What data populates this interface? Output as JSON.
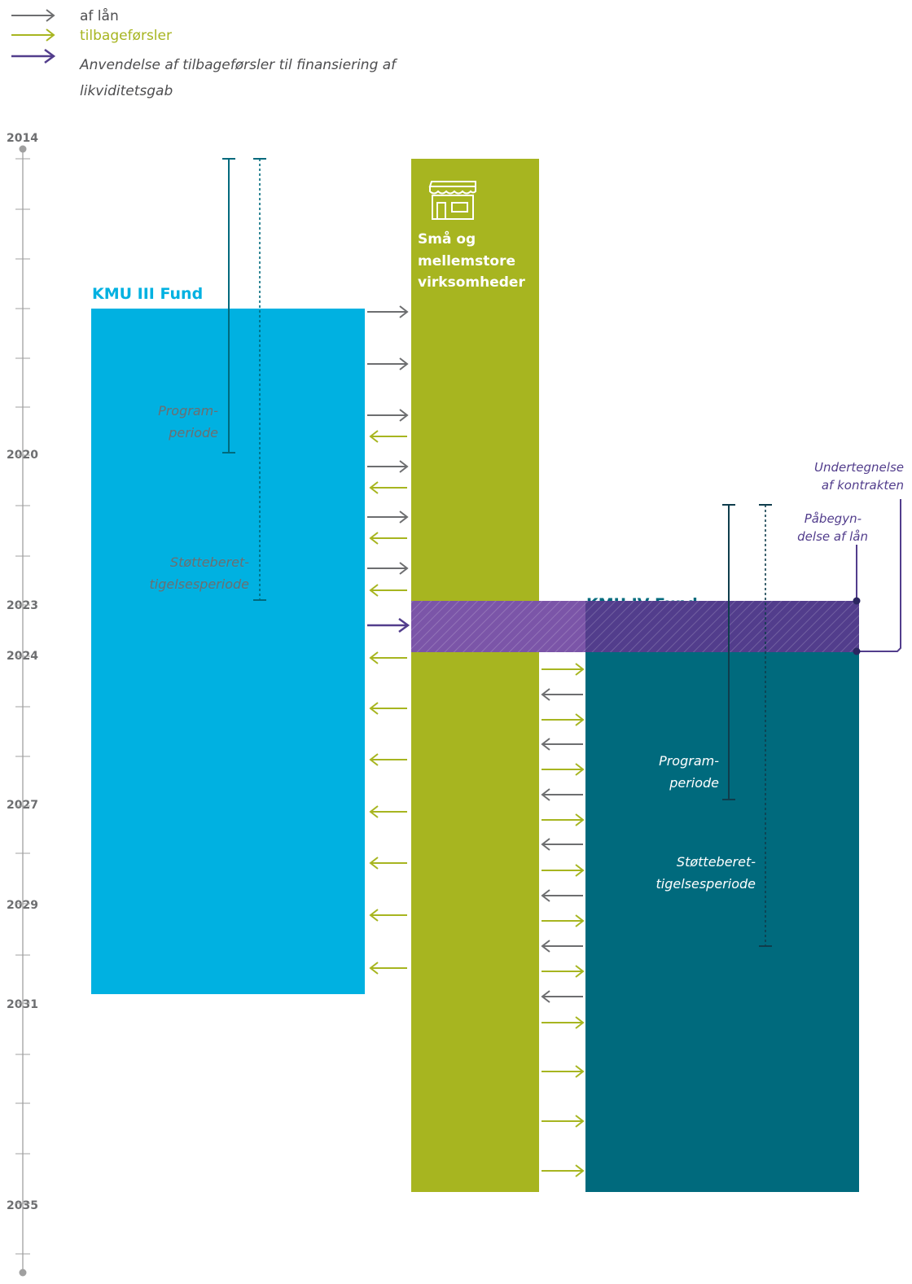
{
  "legend": {
    "loans_label": "af lån",
    "repayments_label": "tilbageførsler",
    "reuse_label_line1": "Anvendelse af tilbageførsler til finansiering af",
    "reuse_label_line2": "likviditetsgab"
  },
  "timeline": {
    "years": [
      "2014",
      "2020",
      "2023",
      "2024",
      "2027",
      "2029",
      "2031",
      "2035"
    ]
  },
  "funds": {
    "kmu3_title": "KMU III Fund",
    "kmu4_title": "KMU IV Fund"
  },
  "sme": {
    "icon": "shop-icon",
    "label_line1": "Små og",
    "label_line2": "mellemstore",
    "label_line3": "virksomheder"
  },
  "periods": {
    "program_line1": "Program-",
    "program_line2": "periode",
    "eligibility_line1": "Støtteberet-",
    "eligibility_line2": "tigelsesperiode"
  },
  "annotations": {
    "signature_line1": "Undertegnelse",
    "signature_line2": "af kontrakten",
    "loan_start_line1": "Påbegyn-",
    "loan_start_line2": "delse af lån"
  },
  "colors": {
    "kmu3": "#00b1e1",
    "kmu4": "#006a7d",
    "sme": "#a7b520",
    "loans_arrow": "#6d6e70",
    "repayments_arrow": "#a7b520",
    "reuse_arrow": "#523d8c",
    "overlap_band": "#523d8c",
    "timeline": "#a0a0a0"
  }
}
